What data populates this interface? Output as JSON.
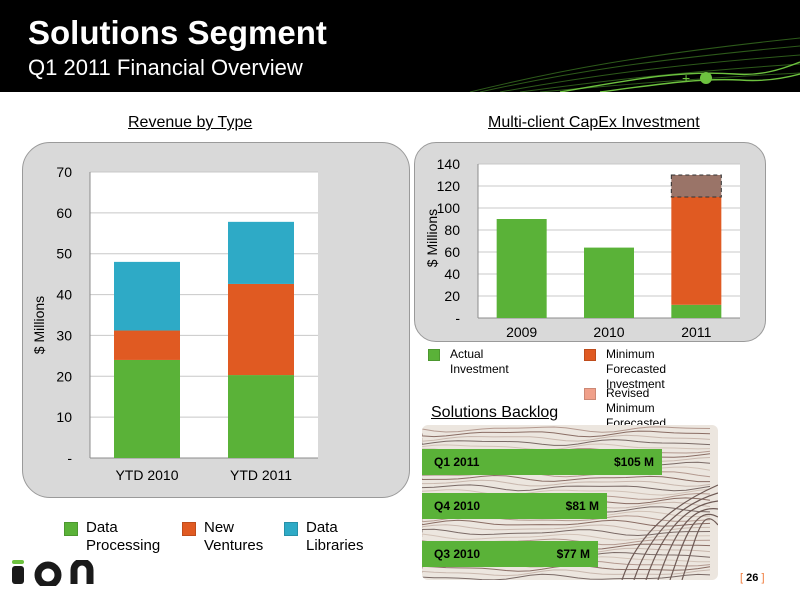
{
  "header": {
    "title": "Solutions Segment",
    "subtitle": "Q1 2011 Financial Overview",
    "plus": "+"
  },
  "chart_data": [
    {
      "type": "bar",
      "stacked": true,
      "title": "Revenue by Type",
      "ylabel": "$ Millions",
      "xlabel": "",
      "categories": [
        "YTD 2010",
        "YTD 2011"
      ],
      "ylim": [
        0,
        70
      ],
      "yticks": [
        "-",
        "10",
        "20",
        "30",
        "40",
        "50",
        "60",
        "70"
      ],
      "series": [
        {
          "name": "Data Processing",
          "values": [
            24,
            20.3
          ],
          "color": "#5ab238"
        },
        {
          "name": "New Ventures",
          "values": [
            7.2,
            22.3
          ],
          "color": "#e05a22"
        },
        {
          "name": "Data Libraries",
          "values": [
            16.8,
            15.2
          ],
          "color": "#2eaac6"
        }
      ],
      "legend": {
        "placement": "bottom",
        "items": [
          {
            "line1": "Data",
            "line2": "Processing",
            "color": "#5ab238"
          },
          {
            "line1": "New",
            "line2": "Ventures",
            "color": "#e05a22"
          },
          {
            "line1": "Data",
            "line2": "Libraries",
            "color": "#2eaac6"
          }
        ]
      }
    },
    {
      "type": "bar",
      "stacked": true,
      "title": "Multi-client CapEx Investment",
      "ylabel": "$ Millions",
      "xlabel": "",
      "categories": [
        "2009",
        "2010",
        "2011"
      ],
      "ylim": [
        0,
        140
      ],
      "yticks": [
        "-",
        "20",
        "40",
        "60",
        "80",
        "100",
        "120",
        "140"
      ],
      "series": [
        {
          "name": "Actual Investment",
          "values": [
            90,
            64,
            12
          ],
          "color": "#5ab238"
        },
        {
          "name": "Minimum Forecasted Investment",
          "values": [
            0,
            0,
            98
          ],
          "color": "#e05a22"
        },
        {
          "name": "Revised Minimum Forecasted Investment",
          "values": [
            0,
            0,
            20
          ],
          "color": "#9a7468"
        }
      ],
      "legend": {
        "placement": "bottom",
        "items": [
          {
            "line1": "Actual Investment",
            "line2": "",
            "color": "#5ab238"
          },
          {
            "line1": "Minimum Forecasted",
            "line2": "Investment",
            "color": "#e05a22"
          },
          {
            "line1": "Revised Minimum",
            "line2": "Forecasted Investment",
            "color": "#f0a08a"
          }
        ]
      }
    },
    {
      "type": "bar",
      "orientation": "horizontal",
      "title": "Solutions Backlog",
      "categories": [
        "Q1 2011",
        "Q4 2010",
        "Q3 2010"
      ],
      "values": [
        105,
        81,
        77
      ],
      "labels": [
        "$105 M",
        "$81 M",
        "$77 M"
      ],
      "color": "#5ab238"
    }
  ],
  "footer": {
    "logo_text": "ION",
    "page_open": "[",
    "page_number": "26",
    "page_close": "]"
  }
}
